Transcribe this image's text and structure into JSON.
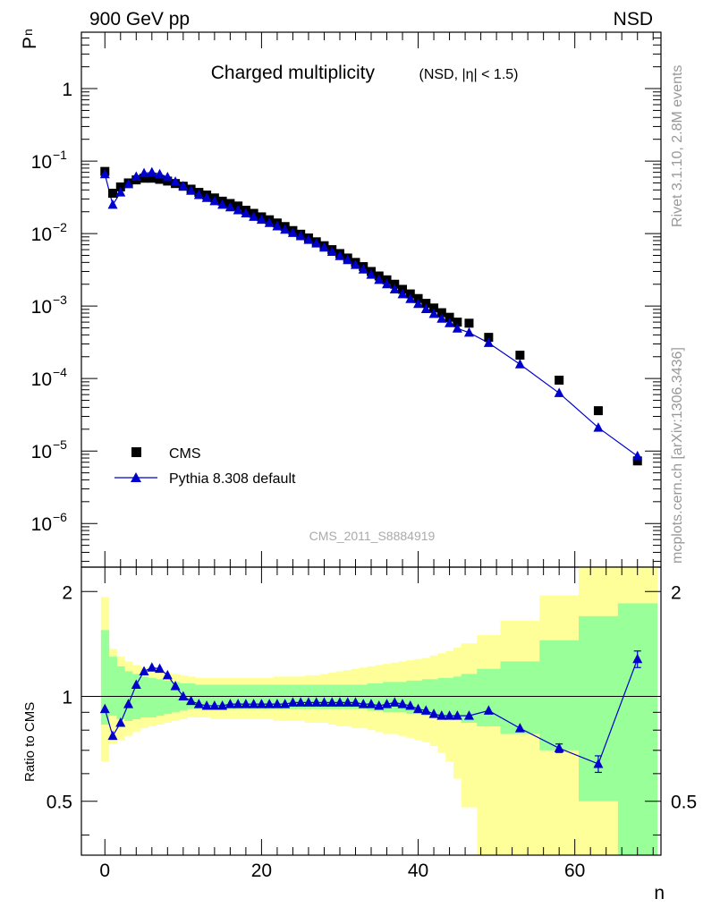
{
  "header": {
    "left": "900 GeV pp",
    "right": "NSD"
  },
  "side_labels": {
    "rivet": "Rivet 3.1.10,  2.8M events",
    "mcplots": "mcplots.cern.ch [arXiv:1306.3436]"
  },
  "chart_data": [
    {
      "type": "scatter",
      "title": "Charged multiplicity",
      "subtitle": "(NSD, |η| < 1.5)",
      "ylabel": "P",
      "ylabel_sub": "n",
      "xlabel": "n",
      "yscale": "log",
      "xlim": [
        -3,
        71
      ],
      "ylim": [
        2.5e-07,
        6
      ],
      "y_ticks": [
        {
          "v": 1,
          "label": "1"
        },
        {
          "v": 0.1,
          "label": "10",
          "exp": "−1"
        },
        {
          "v": 0.01,
          "label": "10",
          "exp": "−2"
        },
        {
          "v": 0.001,
          "label": "10",
          "exp": "−3"
        },
        {
          "v": 0.0001,
          "label": "10",
          "exp": "−4"
        },
        {
          "v": 1e-05,
          "label": "10",
          "exp": "−5"
        },
        {
          "v": 1e-06,
          "label": "10",
          "exp": "−6"
        }
      ],
      "watermark": "CMS_2011_S8884919",
      "legend_position": "bottom-left",
      "series": [
        {
          "name": "CMS",
          "color": "#000000",
          "marker": "square",
          "x": [
            0,
            1,
            2,
            3,
            4,
            5,
            6,
            7,
            8,
            9,
            10,
            11,
            12,
            13,
            14,
            15,
            16,
            17,
            18,
            19,
            20,
            21,
            22,
            23,
            24,
            25,
            26,
            27,
            28,
            29,
            30,
            31,
            32,
            33,
            34,
            35,
            36,
            37,
            38,
            39,
            40,
            41,
            42,
            43,
            44,
            45,
            46.5,
            49,
            53,
            58,
            63,
            68
          ],
          "y": [
            0.072,
            0.036,
            0.044,
            0.05,
            0.055,
            0.058,
            0.058,
            0.056,
            0.053,
            0.049,
            0.045,
            0.041,
            0.037,
            0.034,
            0.031,
            0.028,
            0.026,
            0.024,
            0.021,
            0.019,
            0.017,
            0.0155,
            0.014,
            0.0125,
            0.011,
            0.0098,
            0.0087,
            0.0077,
            0.0068,
            0.006,
            0.0053,
            0.0046,
            0.004,
            0.0035,
            0.003,
            0.0026,
            0.0023,
            0.002,
            0.0017,
            0.00147,
            0.00127,
            0.00109,
            0.00094,
            0.00081,
            0.0007,
            0.0006,
            0.00058,
            0.00037,
            0.00021,
            9.5e-05,
            3.6e-05,
            7.3e-06
          ]
        },
        {
          "name": "Pythia 8.308 default",
          "color": "#0000cc",
          "marker": "triangle",
          "x": [
            0,
            1,
            2,
            3,
            4,
            5,
            6,
            7,
            8,
            9,
            10,
            11,
            12,
            13,
            14,
            15,
            16,
            17,
            18,
            19,
            20,
            21,
            22,
            23,
            24,
            25,
            26,
            27,
            28,
            29,
            30,
            31,
            32,
            33,
            34,
            35,
            36,
            37,
            38,
            39,
            40,
            41,
            42,
            43,
            44,
            45,
            46.5,
            49,
            53,
            58,
            63,
            68
          ],
          "y": [
            0.066,
            0.025,
            0.037,
            0.048,
            0.061,
            0.068,
            0.07,
            0.066,
            0.06,
            0.052,
            0.045,
            0.039,
            0.034,
            0.031,
            0.028,
            0.025,
            0.023,
            0.021,
            0.019,
            0.017,
            0.0155,
            0.014,
            0.0126,
            0.0113,
            0.0102,
            0.0092,
            0.0082,
            0.0073,
            0.0064,
            0.0056,
            0.0049,
            0.0043,
            0.0037,
            0.0032,
            0.0027,
            0.0023,
            0.002,
            0.0017,
            0.00146,
            0.00125,
            0.00107,
            0.00091,
            0.00078,
            0.00067,
            0.00058,
            0.00049,
            0.00043,
            0.00031,
            0.000157,
            6.3e-05,
            2.1e-05,
            8.5e-06
          ]
        }
      ]
    },
    {
      "type": "scatter",
      "ylabel": "Ratio to CMS",
      "xlabel": "n",
      "xlim": [
        -3,
        71
      ],
      "ylim": [
        0.35,
        2.35
      ],
      "x_ticks": [
        0,
        20,
        40,
        60
      ],
      "y_ticks": [
        0.5,
        1,
        2
      ],
      "reference_line": 1,
      "bands": {
        "outer_color": "#ffff99",
        "inner_color": "#99ff99",
        "edges": [
          -0.5,
          0.5,
          1.5,
          2.5,
          3.5,
          4.5,
          5.5,
          6.5,
          7.5,
          8.5,
          9.5,
          10.5,
          11.5,
          12.5,
          13.5,
          14.5,
          15.5,
          16.5,
          17.5,
          18.5,
          19.5,
          20.5,
          21.5,
          22.5,
          23.5,
          24.5,
          25.5,
          26.5,
          27.5,
          28.5,
          29.5,
          30.5,
          31.5,
          32.5,
          33.5,
          34.5,
          35.5,
          36.5,
          37.5,
          38.5,
          39.5,
          40.5,
          41.5,
          42.5,
          43.5,
          44.5,
          45.5,
          47.5,
          50.5,
          55.5,
          60.5,
          65.5,
          70.5
        ],
        "inner_lo": [
          0.83,
          0.88,
          0.86,
          0.85,
          0.86,
          0.87,
          0.87,
          0.88,
          0.89,
          0.9,
          0.91,
          0.92,
          0.92,
          0.92,
          0.92,
          0.92,
          0.92,
          0.92,
          0.92,
          0.92,
          0.92,
          0.92,
          0.92,
          0.92,
          0.92,
          0.92,
          0.92,
          0.92,
          0.92,
          0.92,
          0.92,
          0.92,
          0.92,
          0.92,
          0.91,
          0.91,
          0.9,
          0.9,
          0.9,
          0.89,
          0.89,
          0.88,
          0.88,
          0.87,
          0.87,
          0.86,
          0.84,
          0.82,
          0.78,
          0.7,
          0.5,
          0.35
        ],
        "inner_hi": [
          1.55,
          1.3,
          1.22,
          1.18,
          1.16,
          1.14,
          1.13,
          1.12,
          1.11,
          1.1,
          1.09,
          1.09,
          1.08,
          1.08,
          1.08,
          1.08,
          1.08,
          1.08,
          1.08,
          1.08,
          1.08,
          1.08,
          1.08,
          1.08,
          1.08,
          1.08,
          1.08,
          1.08,
          1.08,
          1.08,
          1.08,
          1.08,
          1.08,
          1.08,
          1.09,
          1.09,
          1.1,
          1.1,
          1.1,
          1.11,
          1.11,
          1.12,
          1.12,
          1.13,
          1.13,
          1.14,
          1.16,
          1.2,
          1.26,
          1.45,
          1.7,
          1.85
        ],
        "outer_lo": [
          0.65,
          0.73,
          0.75,
          0.77,
          0.79,
          0.81,
          0.82,
          0.83,
          0.84,
          0.85,
          0.86,
          0.87,
          0.87,
          0.87,
          0.86,
          0.86,
          0.86,
          0.86,
          0.86,
          0.86,
          0.86,
          0.86,
          0.85,
          0.85,
          0.85,
          0.85,
          0.84,
          0.84,
          0.84,
          0.83,
          0.82,
          0.82,
          0.81,
          0.81,
          0.8,
          0.79,
          0.78,
          0.78,
          0.77,
          0.76,
          0.75,
          0.74,
          0.72,
          0.69,
          0.65,
          0.58,
          0.48,
          0.35,
          0.35,
          0.35,
          0.35,
          0.35
        ],
        "outer_hi": [
          1.93,
          1.37,
          1.3,
          1.26,
          1.23,
          1.21,
          1.2,
          1.18,
          1.17,
          1.16,
          1.15,
          1.14,
          1.13,
          1.13,
          1.13,
          1.13,
          1.13,
          1.13,
          1.13,
          1.13,
          1.13,
          1.13,
          1.14,
          1.14,
          1.14,
          1.14,
          1.15,
          1.15,
          1.16,
          1.17,
          1.18,
          1.19,
          1.2,
          1.21,
          1.22,
          1.23,
          1.24,
          1.25,
          1.26,
          1.27,
          1.28,
          1.29,
          1.31,
          1.33,
          1.35,
          1.38,
          1.42,
          1.5,
          1.65,
          1.95,
          2.35,
          2.35
        ]
      },
      "series": [
        {
          "name": "Pythia 8.308 default",
          "color": "#0000cc",
          "marker": "triangle",
          "x": [
            0,
            1,
            2,
            3,
            4,
            5,
            6,
            7,
            8,
            9,
            10,
            11,
            12,
            13,
            14,
            15,
            16,
            17,
            18,
            19,
            20,
            21,
            22,
            23,
            24,
            25,
            26,
            27,
            28,
            29,
            30,
            31,
            32,
            33,
            34,
            35,
            36,
            37,
            38,
            39,
            40,
            41,
            42,
            43,
            44,
            45,
            46.5,
            49,
            53,
            58,
            63,
            68
          ],
          "y": [
            0.92,
            0.77,
            0.84,
            0.95,
            1.08,
            1.18,
            1.21,
            1.2,
            1.15,
            1.07,
            1.0,
            0.97,
            0.95,
            0.94,
            0.94,
            0.94,
            0.95,
            0.95,
            0.95,
            0.95,
            0.95,
            0.95,
            0.95,
            0.95,
            0.96,
            0.96,
            0.96,
            0.96,
            0.96,
            0.96,
            0.96,
            0.96,
            0.96,
            0.95,
            0.95,
            0.94,
            0.95,
            0.96,
            0.95,
            0.94,
            0.92,
            0.91,
            0.89,
            0.88,
            0.88,
            0.88,
            0.88,
            0.91,
            0.81,
            0.71,
            0.64,
            1.28
          ],
          "err": [
            0,
            0,
            0,
            0,
            0,
            0,
            0,
            0,
            0,
            0,
            0,
            0,
            0,
            0,
            0,
            0,
            0,
            0,
            0,
            0,
            0,
            0,
            0,
            0,
            0,
            0,
            0,
            0,
            0,
            0,
            0,
            0,
            0,
            0,
            0,
            0,
            0,
            0,
            0,
            0,
            0,
            0,
            0,
            0,
            0,
            0,
            0,
            0,
            0,
            0.02,
            0.035,
            0.07
          ]
        }
      ]
    }
  ]
}
